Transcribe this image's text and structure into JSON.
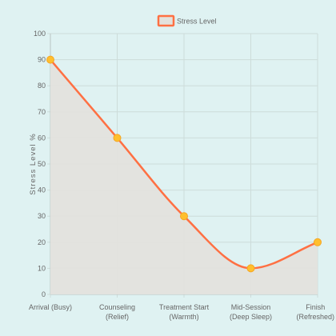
{
  "chart_data": {
    "type": "line",
    "categories": [
      [
        "Arrival (Busy)"
      ],
      [
        "Counseling",
        "(Relief)"
      ],
      [
        "Treatment Start",
        "(Warmth)"
      ],
      [
        "Mid-Session",
        "(Deep Sleep)"
      ],
      [
        "Finish",
        "(Refreshed)"
      ]
    ],
    "series": [
      {
        "name": "Stress Level",
        "values": [
          90,
          60,
          30,
          10,
          20
        ]
      }
    ],
    "ylabel": "Stress Level %",
    "xlabel": "",
    "ylim": [
      0,
      100
    ],
    "yticks": [
      0,
      10,
      20,
      30,
      40,
      50,
      60,
      70,
      80,
      90,
      100
    ],
    "grid": true,
    "legend": "top-center",
    "colors": {
      "line": "#ff7043",
      "fill": "#e3e2dd",
      "point": "#ffbf2e",
      "point_border": "#f5a623",
      "grid": "#cddcda",
      "axis": "#b9c4c2"
    }
  }
}
